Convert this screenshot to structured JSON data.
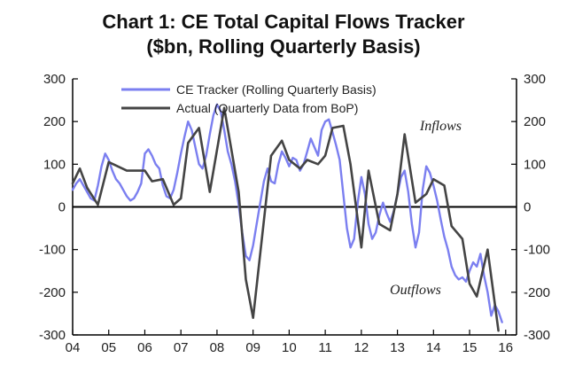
{
  "chart_data": {
    "type": "line",
    "title": "Chart 1: CE Total Capital Flows Tracker",
    "subtitle": "($bn, Rolling Quarterly Basis)",
    "xlabel": "",
    "ylabel": "",
    "xlim": [
      2004,
      2016.3
    ],
    "ylim": [
      -300,
      300
    ],
    "x_ticks": [
      "04",
      "05",
      "06",
      "07",
      "08",
      "09",
      "10",
      "11",
      "12",
      "13",
      "14",
      "15",
      "16"
    ],
    "y_ticks_left": [
      "300",
      "200",
      "100",
      "0",
      "-100",
      "-200",
      "-300"
    ],
    "y_ticks_right": [
      "300",
      "200",
      "100",
      "0",
      "-100",
      "-200",
      "-300"
    ],
    "legend_position": "top-left",
    "annotations": [
      {
        "text": "Inflows",
        "x": 2014.2,
        "y": 180
      },
      {
        "text": "Outflows",
        "x": 2013.5,
        "y": -205
      }
    ],
    "series": [
      {
        "name": "CE Tracker (Rolling Quarterly Basis)",
        "color": "#7b7ff0",
        "points": [
          [
            2004.0,
            40
          ],
          [
            2004.1,
            55
          ],
          [
            2004.2,
            65
          ],
          [
            2004.3,
            50
          ],
          [
            2004.4,
            35
          ],
          [
            2004.5,
            20
          ],
          [
            2004.6,
            15
          ],
          [
            2004.7,
            50
          ],
          [
            2004.8,
            95
          ],
          [
            2004.9,
            125
          ],
          [
            2005.0,
            110
          ],
          [
            2005.1,
            85
          ],
          [
            2005.2,
            65
          ],
          [
            2005.3,
            55
          ],
          [
            2005.4,
            40
          ],
          [
            2005.5,
            25
          ],
          [
            2005.6,
            15
          ],
          [
            2005.7,
            20
          ],
          [
            2005.8,
            35
          ],
          [
            2005.9,
            55
          ],
          [
            2006.0,
            125
          ],
          [
            2006.1,
            135
          ],
          [
            2006.2,
            120
          ],
          [
            2006.3,
            100
          ],
          [
            2006.4,
            90
          ],
          [
            2006.5,
            50
          ],
          [
            2006.6,
            25
          ],
          [
            2006.7,
            20
          ],
          [
            2006.8,
            40
          ],
          [
            2006.9,
            80
          ],
          [
            2007.0,
            125
          ],
          [
            2007.1,
            165
          ],
          [
            2007.2,
            200
          ],
          [
            2007.3,
            180
          ],
          [
            2007.4,
            140
          ],
          [
            2007.5,
            100
          ],
          [
            2007.6,
            90
          ],
          [
            2007.7,
            120
          ],
          [
            2007.8,
            170
          ],
          [
            2007.9,
            215
          ],
          [
            2008.0,
            240
          ],
          [
            2008.1,
            225
          ],
          [
            2008.2,
            180
          ],
          [
            2008.3,
            130
          ],
          [
            2008.4,
            100
          ],
          [
            2008.5,
            60
          ],
          [
            2008.6,
            5
          ],
          [
            2008.7,
            -60
          ],
          [
            2008.8,
            -115
          ],
          [
            2008.9,
            -125
          ],
          [
            2009.0,
            -90
          ],
          [
            2009.1,
            -40
          ],
          [
            2009.2,
            10
          ],
          [
            2009.3,
            60
          ],
          [
            2009.4,
            90
          ],
          [
            2009.5,
            60
          ],
          [
            2009.6,
            55
          ],
          [
            2009.7,
            100
          ],
          [
            2009.8,
            130
          ],
          [
            2009.9,
            115
          ],
          [
            2010.0,
            95
          ],
          [
            2010.1,
            115
          ],
          [
            2010.2,
            110
          ],
          [
            2010.3,
            85
          ],
          [
            2010.4,
            100
          ],
          [
            2010.5,
            130
          ],
          [
            2010.6,
            160
          ],
          [
            2010.7,
            140
          ],
          [
            2010.8,
            120
          ],
          [
            2010.9,
            180
          ],
          [
            2011.0,
            200
          ],
          [
            2011.1,
            205
          ],
          [
            2011.2,
            175
          ],
          [
            2011.3,
            145
          ],
          [
            2011.4,
            110
          ],
          [
            2011.5,
            30
          ],
          [
            2011.6,
            -50
          ],
          [
            2011.7,
            -95
          ],
          [
            2011.8,
            -75
          ],
          [
            2011.9,
            10
          ],
          [
            2012.0,
            70
          ],
          [
            2012.1,
            30
          ],
          [
            2012.2,
            -40
          ],
          [
            2012.3,
            -75
          ],
          [
            2012.4,
            -60
          ],
          [
            2012.5,
            -20
          ],
          [
            2012.6,
            10
          ],
          [
            2012.7,
            -15
          ],
          [
            2012.8,
            -35
          ],
          [
            2012.9,
            -10
          ],
          [
            2013.0,
            30
          ],
          [
            2013.1,
            70
          ],
          [
            2013.2,
            85
          ],
          [
            2013.3,
            35
          ],
          [
            2013.4,
            -40
          ],
          [
            2013.5,
            -95
          ],
          [
            2013.6,
            -60
          ],
          [
            2013.7,
            40
          ],
          [
            2013.8,
            95
          ],
          [
            2013.9,
            80
          ],
          [
            2014.0,
            50
          ],
          [
            2014.1,
            15
          ],
          [
            2014.2,
            -30
          ],
          [
            2014.3,
            -70
          ],
          [
            2014.4,
            -100
          ],
          [
            2014.5,
            -140
          ],
          [
            2014.6,
            -160
          ],
          [
            2014.7,
            -170
          ],
          [
            2014.8,
            -165
          ],
          [
            2014.9,
            -175
          ],
          [
            2015.0,
            -150
          ],
          [
            2015.1,
            -130
          ],
          [
            2015.2,
            -140
          ],
          [
            2015.3,
            -110
          ],
          [
            2015.4,
            -160
          ],
          [
            2015.5,
            -200
          ],
          [
            2015.6,
            -255
          ],
          [
            2015.7,
            -230
          ],
          [
            2015.8,
            -245
          ],
          [
            2015.9,
            -270
          ]
        ]
      },
      {
        "name": "Actual (Quarterly Data from BoP)",
        "color": "#444444",
        "points": [
          [
            2004.0,
            55
          ],
          [
            2004.2,
            90
          ],
          [
            2004.4,
            45
          ],
          [
            2004.7,
            5
          ],
          [
            2005.0,
            105
          ],
          [
            2005.5,
            85
          ],
          [
            2006.0,
            85
          ],
          [
            2006.2,
            60
          ],
          [
            2006.5,
            65
          ],
          [
            2006.8,
            5
          ],
          [
            2007.0,
            20
          ],
          [
            2007.2,
            150
          ],
          [
            2007.5,
            185
          ],
          [
            2007.8,
            35
          ],
          [
            2008.2,
            232
          ],
          [
            2008.6,
            35
          ],
          [
            2008.8,
            -170
          ],
          [
            2009.0,
            -260
          ],
          [
            2009.5,
            120
          ],
          [
            2009.8,
            155
          ],
          [
            2010.0,
            110
          ],
          [
            2010.3,
            90
          ],
          [
            2010.5,
            110
          ],
          [
            2010.8,
            100
          ],
          [
            2011.0,
            120
          ],
          [
            2011.2,
            185
          ],
          [
            2011.5,
            190
          ],
          [
            2011.7,
            100
          ],
          [
            2012.0,
            -95
          ],
          [
            2012.2,
            85
          ],
          [
            2012.5,
            -40
          ],
          [
            2012.8,
            -55
          ],
          [
            2013.0,
            30
          ],
          [
            2013.2,
            170
          ],
          [
            2013.5,
            10
          ],
          [
            2013.8,
            30
          ],
          [
            2014.0,
            65
          ],
          [
            2014.3,
            50
          ],
          [
            2014.5,
            -45
          ],
          [
            2014.8,
            -75
          ],
          [
            2015.0,
            -180
          ],
          [
            2015.2,
            -210
          ],
          [
            2015.5,
            -100
          ],
          [
            2015.8,
            -290
          ]
        ]
      }
    ]
  }
}
